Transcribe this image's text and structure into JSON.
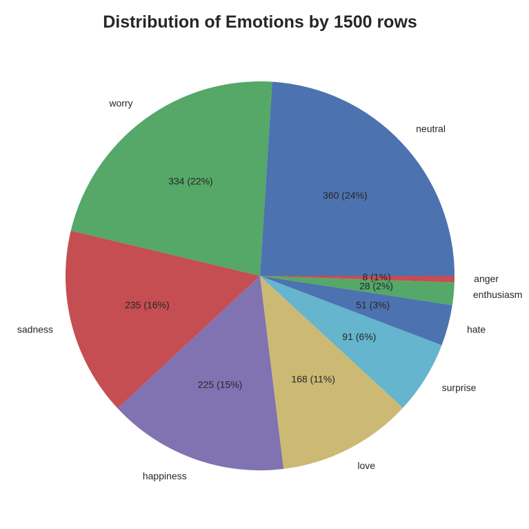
{
  "chart_data": {
    "type": "pie",
    "title": "Distribution of Emotions by 1500 rows",
    "start_angle_deg": 0,
    "direction": "counterclockwise",
    "slices": [
      {
        "label": "neutral",
        "value": 360,
        "data_label": "360 (24%)",
        "color": "#4c72b0"
      },
      {
        "label": "worry",
        "value": 334,
        "data_label": "334 (22%)",
        "color": "#55a868"
      },
      {
        "label": "sadness",
        "value": 235,
        "data_label": "235 (16%)",
        "color": "#c44e52"
      },
      {
        "label": "happiness",
        "value": 225,
        "data_label": "225 (15%)",
        "color": "#8172b2"
      },
      {
        "label": "love",
        "value": 168,
        "data_label": "168 (11%)",
        "color": "#ccb974"
      },
      {
        "label": "surprise",
        "value": 91,
        "data_label": "91 (6%)",
        "color": "#64b5cd"
      },
      {
        "label": "hate",
        "value": 51,
        "data_label": "51 (3%)",
        "color": "#4c72b0"
      },
      {
        "label": "enthusiasm",
        "value": 28,
        "data_label": "28 (2%)",
        "color": "#55a868"
      },
      {
        "label": "anger",
        "value": 8,
        "data_label": "8 (1%)",
        "color": "#c44e52"
      }
    ]
  }
}
